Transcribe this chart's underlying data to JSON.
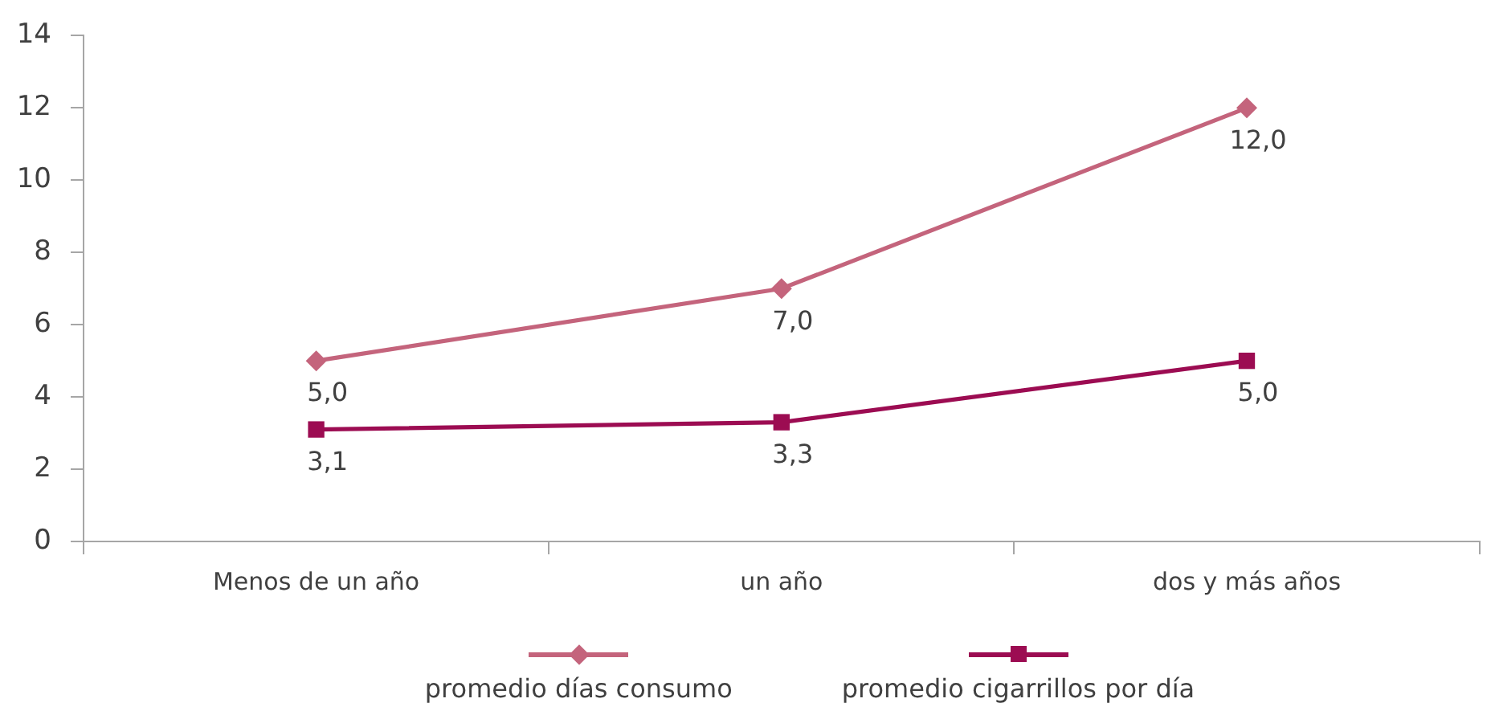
{
  "chart_data": {
    "type": "line",
    "categories": [
      "Menos de un año",
      "un año",
      "dos y más años"
    ],
    "series": [
      {
        "name": "promedio días consumo",
        "color": "#c4647c",
        "values": [
          5.0,
          7.0,
          12.0
        ],
        "value_labels": [
          "5,0",
          "7,0",
          "12,0"
        ],
        "marker": "diamond"
      },
      {
        "name": "promedio cigarrillos por día",
        "color": "#9c0c52",
        "values": [
          3.1,
          3.3,
          5.0
        ],
        "value_labels": [
          "3,1",
          "3,3",
          "5,0"
        ],
        "marker": "square"
      }
    ],
    "ylim": [
      0,
      14
    ],
    "yticks": [
      0,
      2,
      4,
      6,
      8,
      10,
      12,
      14
    ],
    "legend": "bottom",
    "line_style": "solid"
  }
}
